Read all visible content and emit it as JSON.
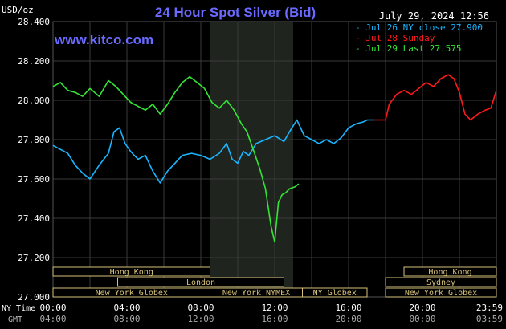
{
  "header": {
    "unit": "USD/oz",
    "title": "24 Hour Spot Silver (Bid)",
    "timestamp": "July 29, 2024 12:56",
    "brand": "www.kitco.com"
  },
  "colors": {
    "background": "#000000",
    "plot_background": "#000000",
    "highlight_band": "#1f241f",
    "grid": "#3a3a3a",
    "axis_text": "#ffffff",
    "title": "#6a6aff",
    "brand": "#6a6aff",
    "jul26": "#19b6ff",
    "jul28": "#ff1a1a",
    "jul29": "#33e633",
    "session_box": "#d8c27a"
  },
  "legend": [
    {
      "marker": "-",
      "text": "Jul 26 NY close 27.900",
      "color": "#19b6ff"
    },
    {
      "marker": "-",
      "text": "Jul 28 Sunday",
      "color": "#ff1a1a"
    },
    {
      "marker": "-",
      "text": "Jul 29 Last 27.575",
      "color": "#33e633"
    }
  ],
  "axis_labels": {
    "ny_time": "NY Time",
    "gmt": "GMT"
  },
  "chart_data": {
    "type": "line",
    "title": "24 Hour Spot Silver (Bid)",
    "ylabel": "USD/oz",
    "ylim": [
      27.0,
      28.4
    ],
    "yticks": [
      "28.400",
      "28.200",
      "28.000",
      "27.800",
      "27.600",
      "27.400",
      "27.200",
      "27.000"
    ],
    "xlim": [
      0,
      24
    ],
    "xticks_ny": [
      "00:00",
      "04:00",
      "08:00",
      "12:00",
      "16:00",
      "20:00",
      "23:59"
    ],
    "xticks_gmt": [
      "04:00",
      "08:00",
      "12:00",
      "16:00",
      "20:00",
      "00:00",
      "03:59"
    ],
    "grid": true,
    "highlight_hours": [
      8.5,
      13.0
    ],
    "series": [
      {
        "name": "Jul 26 NY close 27.900",
        "color": "#19b6ff",
        "points": [
          [
            0,
            27.77
          ],
          [
            0.4,
            27.75
          ],
          [
            0.8,
            27.73
          ],
          [
            1.2,
            27.67
          ],
          [
            1.6,
            27.63
          ],
          [
            2.0,
            27.6
          ],
          [
            2.5,
            27.67
          ],
          [
            3.0,
            27.73
          ],
          [
            3.3,
            27.84
          ],
          [
            3.6,
            27.86
          ],
          [
            3.9,
            27.78
          ],
          [
            4.2,
            27.74
          ],
          [
            4.6,
            27.7
          ],
          [
            5.0,
            27.72
          ],
          [
            5.4,
            27.64
          ],
          [
            5.8,
            27.58
          ],
          [
            6.2,
            27.64
          ],
          [
            6.6,
            27.68
          ],
          [
            7.0,
            27.72
          ],
          [
            7.5,
            27.73
          ],
          [
            8.0,
            27.72
          ],
          [
            8.5,
            27.7
          ],
          [
            9.0,
            27.73
          ],
          [
            9.4,
            27.78
          ],
          [
            9.7,
            27.7
          ],
          [
            10.0,
            27.68
          ],
          [
            10.3,
            27.74
          ],
          [
            10.6,
            27.72
          ],
          [
            11.0,
            27.78
          ],
          [
            11.5,
            27.8
          ],
          [
            12.0,
            27.82
          ],
          [
            12.5,
            27.79
          ],
          [
            12.8,
            27.84
          ],
          [
            13.2,
            27.9
          ],
          [
            13.6,
            27.82
          ],
          [
            14.0,
            27.8
          ],
          [
            14.4,
            27.78
          ],
          [
            14.8,
            27.8
          ],
          [
            15.2,
            27.78
          ],
          [
            15.6,
            27.81
          ],
          [
            16.0,
            27.86
          ],
          [
            16.4,
            27.88
          ],
          [
            16.8,
            27.89
          ],
          [
            17.0,
            27.9
          ],
          [
            17.4,
            27.9
          ]
        ]
      },
      {
        "name": "Jul 28 Sunday",
        "color": "#ff1a1a",
        "points": [
          [
            17.4,
            27.9
          ],
          [
            18.0,
            27.9
          ],
          [
            18.2,
            27.98
          ],
          [
            18.6,
            28.03
          ],
          [
            19.0,
            28.05
          ],
          [
            19.4,
            28.03
          ],
          [
            19.8,
            28.06
          ],
          [
            20.2,
            28.09
          ],
          [
            20.6,
            28.07
          ],
          [
            21.0,
            28.11
          ],
          [
            21.4,
            28.13
          ],
          [
            21.7,
            28.11
          ],
          [
            22.0,
            28.04
          ],
          [
            22.3,
            27.93
          ],
          [
            22.6,
            27.9
          ],
          [
            23.0,
            27.93
          ],
          [
            23.4,
            27.95
          ],
          [
            23.7,
            27.96
          ],
          [
            24.0,
            28.05
          ]
        ]
      },
      {
        "name": "Jul 29 Last 27.575",
        "color": "#33e633",
        "points": [
          [
            0,
            28.07
          ],
          [
            0.4,
            28.09
          ],
          [
            0.8,
            28.05
          ],
          [
            1.2,
            28.04
          ],
          [
            1.6,
            28.02
          ],
          [
            2.0,
            28.06
          ],
          [
            2.5,
            28.02
          ],
          [
            3.0,
            28.1
          ],
          [
            3.4,
            28.07
          ],
          [
            3.8,
            28.03
          ],
          [
            4.2,
            27.99
          ],
          [
            4.6,
            27.97
          ],
          [
            5.0,
            27.95
          ],
          [
            5.4,
            27.98
          ],
          [
            5.8,
            27.93
          ],
          [
            6.2,
            27.98
          ],
          [
            6.6,
            28.04
          ],
          [
            7.0,
            28.09
          ],
          [
            7.4,
            28.12
          ],
          [
            7.8,
            28.09
          ],
          [
            8.2,
            28.06
          ],
          [
            8.6,
            27.99
          ],
          [
            9.0,
            27.96
          ],
          [
            9.4,
            28.0
          ],
          [
            9.8,
            27.95
          ],
          [
            10.2,
            27.88
          ],
          [
            10.5,
            27.84
          ],
          [
            10.8,
            27.76
          ],
          [
            11.2,
            27.65
          ],
          [
            11.5,
            27.55
          ],
          [
            11.8,
            27.36
          ],
          [
            12.0,
            27.28
          ],
          [
            12.2,
            27.48
          ],
          [
            12.4,
            27.52
          ],
          [
            12.6,
            27.53
          ],
          [
            12.8,
            27.55
          ],
          [
            13.1,
            27.56
          ],
          [
            13.3,
            27.575
          ]
        ]
      }
    ],
    "sessions": [
      {
        "label": "Hong Kong",
        "start": 0.0,
        "end": 8.5,
        "row": 0
      },
      {
        "label": "Hong Kong",
        "start": 19.0,
        "end": 24.0,
        "row": 0
      },
      {
        "label": "London",
        "start": 3.5,
        "end": 12.5,
        "row": 1
      },
      {
        "label": "Sydney",
        "start": 18.0,
        "end": 24.0,
        "row": 1
      },
      {
        "label": "New York Globex",
        "start": 0.0,
        "end": 8.5,
        "row": 2
      },
      {
        "label": "New York NYMEX",
        "start": 8.5,
        "end": 13.5,
        "row": 2
      },
      {
        "label": "NY Globex",
        "start": 13.5,
        "end": 17.0,
        "row": 2
      },
      {
        "label": "New York Globex",
        "start": 18.0,
        "end": 24.0,
        "row": 2
      }
    ]
  }
}
